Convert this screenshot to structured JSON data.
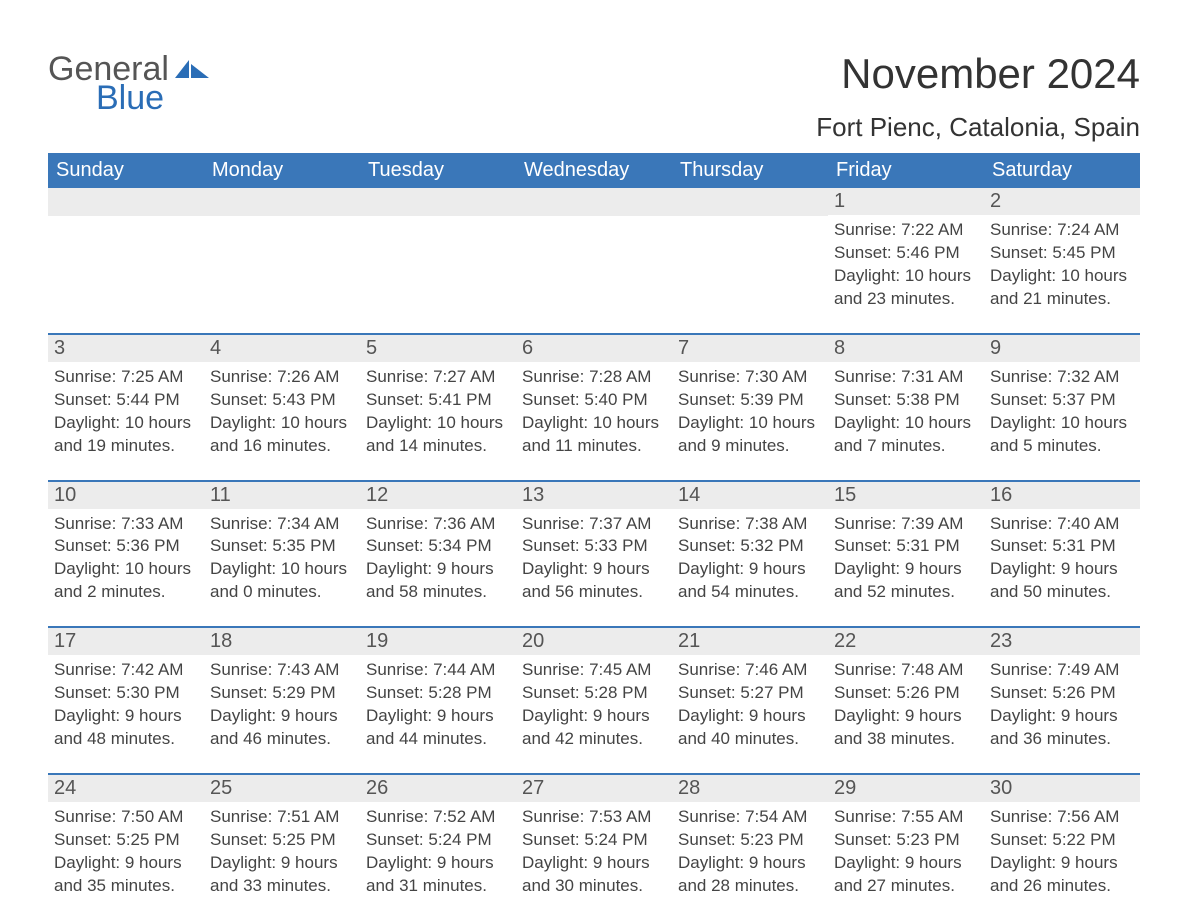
{
  "brand": {
    "general": "General",
    "blue": "Blue",
    "accent_color": "#2a6db6"
  },
  "title": {
    "month": "November 2024",
    "location": "Fort Pienc, Catalonia, Spain"
  },
  "colors": {
    "header_bg": "#3a77b9",
    "header_fg": "#ffffff",
    "daynum_bg": "#ececec",
    "text": "#333333",
    "border": "#3a77b9"
  },
  "day_names": [
    "Sunday",
    "Monday",
    "Tuesday",
    "Wednesday",
    "Thursday",
    "Friday",
    "Saturday"
  ],
  "weeks": [
    [
      {
        "day": "",
        "sunrise": "",
        "sunset": "",
        "daylight1": "",
        "daylight2": ""
      },
      {
        "day": "",
        "sunrise": "",
        "sunset": "",
        "daylight1": "",
        "daylight2": ""
      },
      {
        "day": "",
        "sunrise": "",
        "sunset": "",
        "daylight1": "",
        "daylight2": ""
      },
      {
        "day": "",
        "sunrise": "",
        "sunset": "",
        "daylight1": "",
        "daylight2": ""
      },
      {
        "day": "",
        "sunrise": "",
        "sunset": "",
        "daylight1": "",
        "daylight2": ""
      },
      {
        "day": "1",
        "sunrise": "Sunrise: 7:22 AM",
        "sunset": "Sunset: 5:46 PM",
        "daylight1": "Daylight: 10 hours",
        "daylight2": "and 23 minutes."
      },
      {
        "day": "2",
        "sunrise": "Sunrise: 7:24 AM",
        "sunset": "Sunset: 5:45 PM",
        "daylight1": "Daylight: 10 hours",
        "daylight2": "and 21 minutes."
      }
    ],
    [
      {
        "day": "3",
        "sunrise": "Sunrise: 7:25 AM",
        "sunset": "Sunset: 5:44 PM",
        "daylight1": "Daylight: 10 hours",
        "daylight2": "and 19 minutes."
      },
      {
        "day": "4",
        "sunrise": "Sunrise: 7:26 AM",
        "sunset": "Sunset: 5:43 PM",
        "daylight1": "Daylight: 10 hours",
        "daylight2": "and 16 minutes."
      },
      {
        "day": "5",
        "sunrise": "Sunrise: 7:27 AM",
        "sunset": "Sunset: 5:41 PM",
        "daylight1": "Daylight: 10 hours",
        "daylight2": "and 14 minutes."
      },
      {
        "day": "6",
        "sunrise": "Sunrise: 7:28 AM",
        "sunset": "Sunset: 5:40 PM",
        "daylight1": "Daylight: 10 hours",
        "daylight2": "and 11 minutes."
      },
      {
        "day": "7",
        "sunrise": "Sunrise: 7:30 AM",
        "sunset": "Sunset: 5:39 PM",
        "daylight1": "Daylight: 10 hours",
        "daylight2": "and 9 minutes."
      },
      {
        "day": "8",
        "sunrise": "Sunrise: 7:31 AM",
        "sunset": "Sunset: 5:38 PM",
        "daylight1": "Daylight: 10 hours",
        "daylight2": "and 7 minutes."
      },
      {
        "day": "9",
        "sunrise": "Sunrise: 7:32 AM",
        "sunset": "Sunset: 5:37 PM",
        "daylight1": "Daylight: 10 hours",
        "daylight2": "and 5 minutes."
      }
    ],
    [
      {
        "day": "10",
        "sunrise": "Sunrise: 7:33 AM",
        "sunset": "Sunset: 5:36 PM",
        "daylight1": "Daylight: 10 hours",
        "daylight2": "and 2 minutes."
      },
      {
        "day": "11",
        "sunrise": "Sunrise: 7:34 AM",
        "sunset": "Sunset: 5:35 PM",
        "daylight1": "Daylight: 10 hours",
        "daylight2": "and 0 minutes."
      },
      {
        "day": "12",
        "sunrise": "Sunrise: 7:36 AM",
        "sunset": "Sunset: 5:34 PM",
        "daylight1": "Daylight: 9 hours",
        "daylight2": "and 58 minutes."
      },
      {
        "day": "13",
        "sunrise": "Sunrise: 7:37 AM",
        "sunset": "Sunset: 5:33 PM",
        "daylight1": "Daylight: 9 hours",
        "daylight2": "and 56 minutes."
      },
      {
        "day": "14",
        "sunrise": "Sunrise: 7:38 AM",
        "sunset": "Sunset: 5:32 PM",
        "daylight1": "Daylight: 9 hours",
        "daylight2": "and 54 minutes."
      },
      {
        "day": "15",
        "sunrise": "Sunrise: 7:39 AM",
        "sunset": "Sunset: 5:31 PM",
        "daylight1": "Daylight: 9 hours",
        "daylight2": "and 52 minutes."
      },
      {
        "day": "16",
        "sunrise": "Sunrise: 7:40 AM",
        "sunset": "Sunset: 5:31 PM",
        "daylight1": "Daylight: 9 hours",
        "daylight2": "and 50 minutes."
      }
    ],
    [
      {
        "day": "17",
        "sunrise": "Sunrise: 7:42 AM",
        "sunset": "Sunset: 5:30 PM",
        "daylight1": "Daylight: 9 hours",
        "daylight2": "and 48 minutes."
      },
      {
        "day": "18",
        "sunrise": "Sunrise: 7:43 AM",
        "sunset": "Sunset: 5:29 PM",
        "daylight1": "Daylight: 9 hours",
        "daylight2": "and 46 minutes."
      },
      {
        "day": "19",
        "sunrise": "Sunrise: 7:44 AM",
        "sunset": "Sunset: 5:28 PM",
        "daylight1": "Daylight: 9 hours",
        "daylight2": "and 44 minutes."
      },
      {
        "day": "20",
        "sunrise": "Sunrise: 7:45 AM",
        "sunset": "Sunset: 5:28 PM",
        "daylight1": "Daylight: 9 hours",
        "daylight2": "and 42 minutes."
      },
      {
        "day": "21",
        "sunrise": "Sunrise: 7:46 AM",
        "sunset": "Sunset: 5:27 PM",
        "daylight1": "Daylight: 9 hours",
        "daylight2": "and 40 minutes."
      },
      {
        "day": "22",
        "sunrise": "Sunrise: 7:48 AM",
        "sunset": "Sunset: 5:26 PM",
        "daylight1": "Daylight: 9 hours",
        "daylight2": "and 38 minutes."
      },
      {
        "day": "23",
        "sunrise": "Sunrise: 7:49 AM",
        "sunset": "Sunset: 5:26 PM",
        "daylight1": "Daylight: 9 hours",
        "daylight2": "and 36 minutes."
      }
    ],
    [
      {
        "day": "24",
        "sunrise": "Sunrise: 7:50 AM",
        "sunset": "Sunset: 5:25 PM",
        "daylight1": "Daylight: 9 hours",
        "daylight2": "and 35 minutes."
      },
      {
        "day": "25",
        "sunrise": "Sunrise: 7:51 AM",
        "sunset": "Sunset: 5:25 PM",
        "daylight1": "Daylight: 9 hours",
        "daylight2": "and 33 minutes."
      },
      {
        "day": "26",
        "sunrise": "Sunrise: 7:52 AM",
        "sunset": "Sunset: 5:24 PM",
        "daylight1": "Daylight: 9 hours",
        "daylight2": "and 31 minutes."
      },
      {
        "day": "27",
        "sunrise": "Sunrise: 7:53 AM",
        "sunset": "Sunset: 5:24 PM",
        "daylight1": "Daylight: 9 hours",
        "daylight2": "and 30 minutes."
      },
      {
        "day": "28",
        "sunrise": "Sunrise: 7:54 AM",
        "sunset": "Sunset: 5:23 PM",
        "daylight1": "Daylight: 9 hours",
        "daylight2": "and 28 minutes."
      },
      {
        "day": "29",
        "sunrise": "Sunrise: 7:55 AM",
        "sunset": "Sunset: 5:23 PM",
        "daylight1": "Daylight: 9 hours",
        "daylight2": "and 27 minutes."
      },
      {
        "day": "30",
        "sunrise": "Sunrise: 7:56 AM",
        "sunset": "Sunset: 5:22 PM",
        "daylight1": "Daylight: 9 hours",
        "daylight2": "and 26 minutes."
      }
    ]
  ]
}
